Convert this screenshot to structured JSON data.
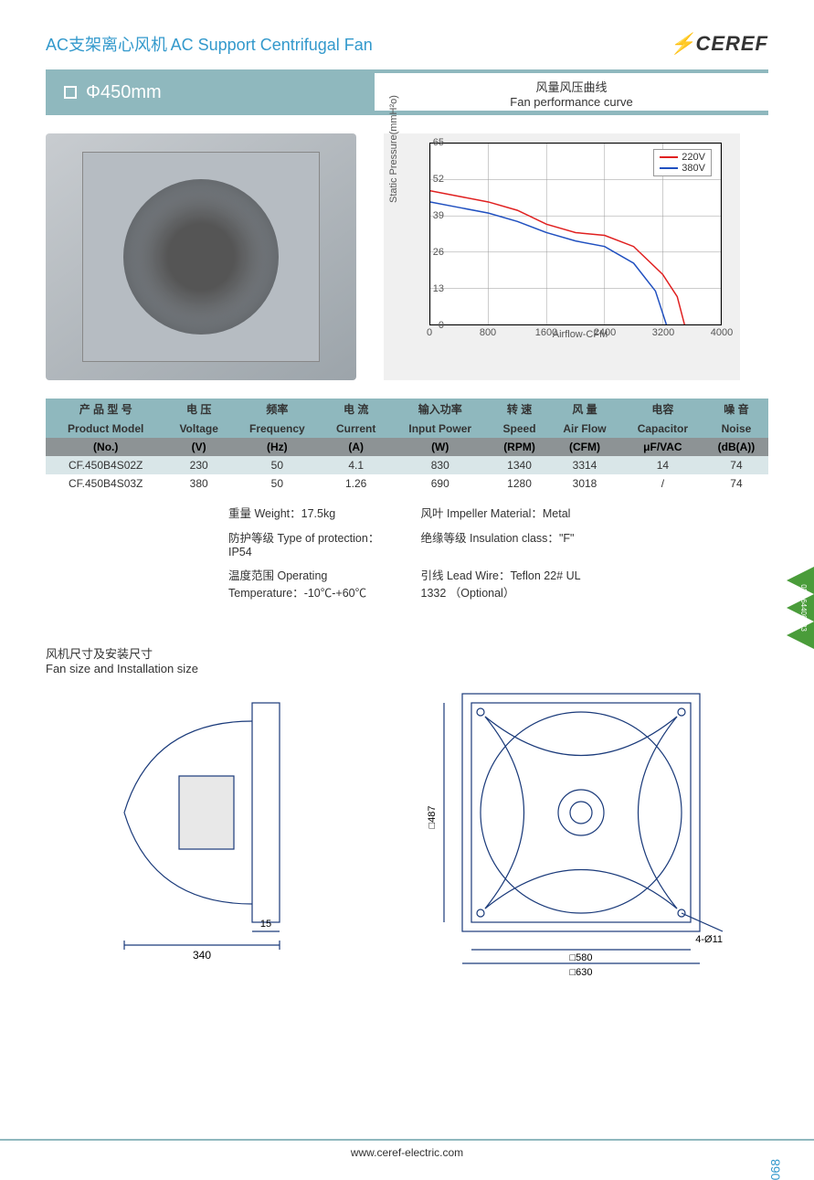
{
  "header": {
    "title_cn": "AC支架离心风机",
    "title_en": "AC Support Centrifugal Fan",
    "logo_text": "CEREF"
  },
  "banner": {
    "size": "Φ450mm",
    "curve_title_cn": "风量风压曲线",
    "curve_title_en": "Fan performance curve"
  },
  "chart": {
    "type": "line",
    "y_label": "Static Pressure(mmH²o)",
    "x_label": "Airflow-CFM",
    "y_ticks": [
      0,
      13,
      26,
      39,
      52,
      65
    ],
    "x_ticks": [
      0,
      800,
      1600,
      2400,
      3200,
      4000
    ],
    "xlim": [
      0,
      4000
    ],
    "ylim": [
      0,
      65
    ],
    "grid_color": "#999999",
    "background_color": "#ffffff",
    "plot_area_bg": "#f0f0f0",
    "series": [
      {
        "name": "220V",
        "color": "#e02020",
        "points": [
          [
            0,
            48
          ],
          [
            400,
            46
          ],
          [
            800,
            44
          ],
          [
            1200,
            41
          ],
          [
            1600,
            36
          ],
          [
            2000,
            33
          ],
          [
            2400,
            32
          ],
          [
            2800,
            28
          ],
          [
            3200,
            18
          ],
          [
            3400,
            10
          ],
          [
            3500,
            0
          ]
        ]
      },
      {
        "name": "380V",
        "color": "#2050c0",
        "points": [
          [
            0,
            44
          ],
          [
            400,
            42
          ],
          [
            800,
            40
          ],
          [
            1200,
            37
          ],
          [
            1600,
            33
          ],
          [
            2000,
            30
          ],
          [
            2400,
            28
          ],
          [
            2800,
            22
          ],
          [
            3100,
            12
          ],
          [
            3250,
            0
          ]
        ]
      }
    ]
  },
  "table": {
    "headers_cn": [
      "产 品 型 号",
      "电 压",
      "频率",
      "电 流",
      "输入功率",
      "转 速",
      "风 量",
      "电容",
      "噪 音"
    ],
    "headers_en": [
      "Product Model",
      "Voltage",
      "Frequency",
      "Current",
      "Input Power",
      "Speed",
      "Air Flow",
      "Capacitor",
      "Noise"
    ],
    "units": [
      "(No.)",
      "(V)",
      "(Hz)",
      "(A)",
      "(W)",
      "(RPM)",
      "(CFM)",
      "μF/VAC",
      "(dB(A))"
    ],
    "rows": [
      [
        "CF.450B4S02Z",
        "230",
        "50",
        "4.1",
        "830",
        "1340",
        "3314",
        "14",
        "74"
      ],
      [
        "CF.450B4S03Z",
        "380",
        "50",
        "1.26",
        "690",
        "1280",
        "3018",
        "/",
        "74"
      ]
    ]
  },
  "extra": {
    "weight_label": "重量 Weight：",
    "weight_value": "17.5kg",
    "impeller_label": "风叶 Impeller Material：",
    "impeller_value": "Metal",
    "protection_label": "防护等级 Type of protection：",
    "protection_value": "IP54",
    "insulation_label": "绝缘等级 Insulation class：",
    "insulation_value": "\"F\"",
    "temp_label": "温度范围 Operating Temperature：",
    "temp_value": "-10℃-+60℃",
    "leadwire_label": "引线 Lead Wire：",
    "leadwire_value": "Teflon 22# UL 1332 （Optional）"
  },
  "dim_section": {
    "title_cn": "风机尺寸及安装尺寸",
    "title_en": "Fan size and Installation size"
  },
  "drawing": {
    "side_width": "340",
    "side_offset": "15",
    "front_height": "487",
    "front_inner": "580",
    "front_outer": "630",
    "hole_callout": "4-Ø11",
    "line_color": "#1a3a7a"
  },
  "footer": {
    "url": "www.ceref-electric.com",
    "page": "068"
  },
  "side_tag": {
    "text": "021-64408223",
    "color": "#4a9c3a"
  }
}
